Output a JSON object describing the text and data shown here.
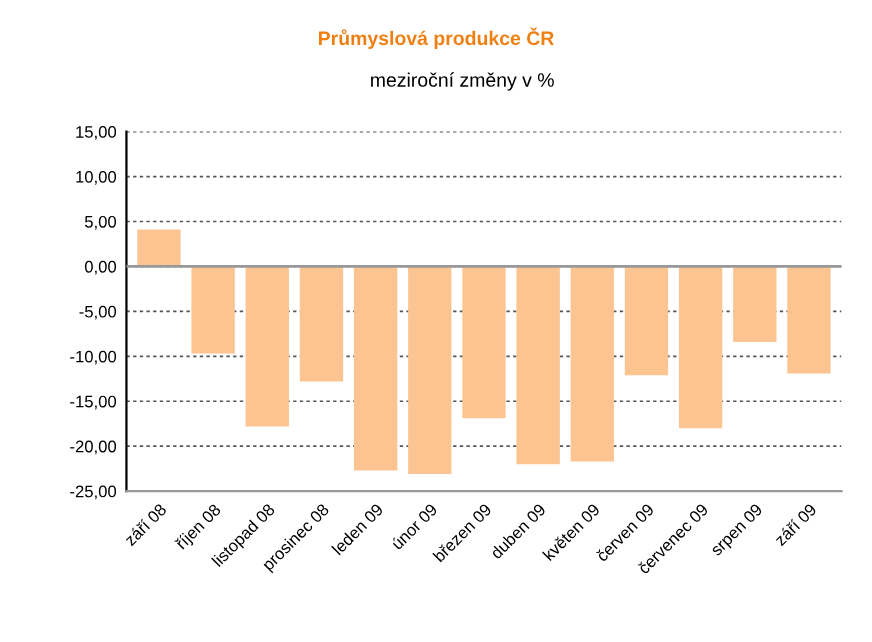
{
  "chart_data": {
    "type": "bar",
    "title": "Průmyslová produkce ČR",
    "subtitle": "meziroční změny v %",
    "categories": [
      "září 08",
      "říjen 08",
      "listopad 08",
      "prosinec 08",
      "leden 09",
      "únor 09",
      "březen 09",
      "duben 09",
      "květen 09",
      "červen 09",
      "červenec 09",
      "srpen 09",
      "září 09"
    ],
    "values": [
      4.1,
      -9.7,
      -17.8,
      -12.8,
      -22.7,
      -23.1,
      -16.9,
      -22.0,
      -21.7,
      -12.1,
      -18.0,
      -8.4,
      -11.9
    ],
    "color": "#fbc491",
    "ylim": [
      -25,
      15
    ],
    "yticks": [
      {
        "value": -25,
        "label": "-25,00"
      },
      {
        "value": -20,
        "label": "-20,00"
      },
      {
        "value": -15,
        "label": "-15,00"
      },
      {
        "value": -10,
        "label": "-10,00"
      },
      {
        "value": -5,
        "label": "-5,00"
      },
      {
        "value": 0,
        "label": "0,00"
      },
      {
        "value": 5,
        "label": "5,00"
      },
      {
        "value": 10,
        "label": "10,00"
      },
      {
        "value": 15,
        "label": "15,00"
      }
    ],
    "grid": "y"
  }
}
